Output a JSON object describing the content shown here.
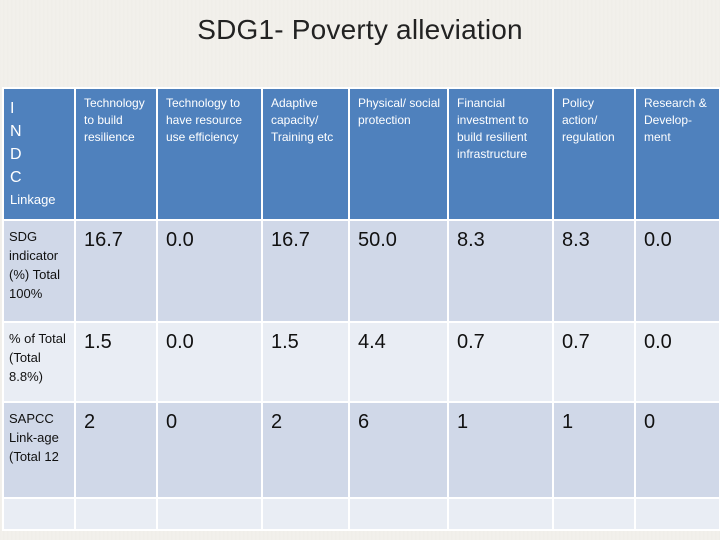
{
  "title": "SDG1- Poverty alleviation",
  "corner": {
    "indc_letters": [
      "I",
      "N",
      "D",
      "C"
    ],
    "linkage": "Linkage"
  },
  "columns": [
    "Technology to build resilience",
    "Technology to have resource use efficiency",
    "Adaptive capacity/ Training etc",
    "Physical/ social protection",
    "Financial investment to build resilient infrastructure",
    "Policy action/ regulation",
    "Research & Develop-ment"
  ],
  "rows": [
    {
      "label": "SDG indicator (%) Total 100%",
      "values": [
        "16.7",
        "0.0",
        "16.7",
        "50.0",
        "8.3",
        "8.3",
        "0.0"
      ]
    },
    {
      "label": "% of Total (Total 8.8%)",
      "values": [
        "1.5",
        "0.0",
        "1.5",
        "4.4",
        "0.7",
        "0.7",
        "0.0"
      ]
    },
    {
      "label": "SAPCC Link-age (Total 12",
      "values": [
        "2",
        "0",
        "2",
        "6",
        "1",
        "1",
        "0"
      ]
    }
  ],
  "colors": {
    "header_blue": "#4f81bd",
    "row_dark": "#d0d8e8",
    "row_light": "#e9edf4"
  }
}
